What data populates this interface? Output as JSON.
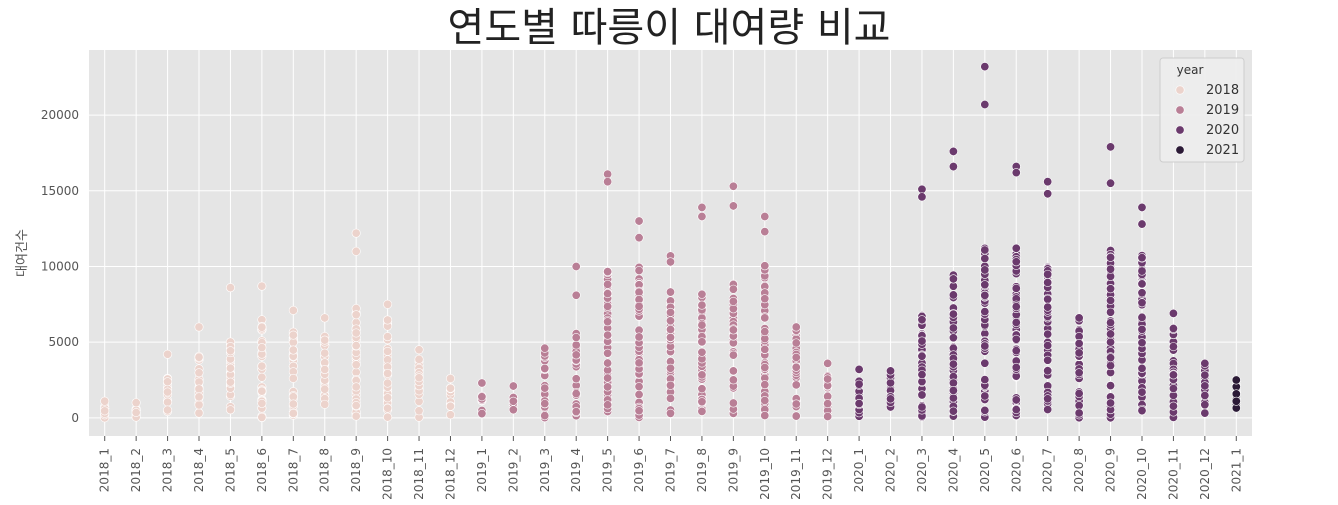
{
  "chart_data": {
    "type": "scatter",
    "title": "연도별 따릉이 대여량 비교",
    "xlabel": "",
    "ylabel": "대여건수",
    "categories": [
      "2018_1",
      "2018_2",
      "2018_3",
      "2018_4",
      "2018_5",
      "2018_6",
      "2018_7",
      "2018_8",
      "2018_9",
      "2018_10",
      "2018_11",
      "2018_12",
      "2019_1",
      "2019_2",
      "2019_3",
      "2019_4",
      "2019_5",
      "2019_6",
      "2019_7",
      "2019_8",
      "2019_9",
      "2019_10",
      "2019_11",
      "2019_12",
      "2020_1",
      "2020_2",
      "2020_3",
      "2020_4",
      "2020_5",
      "2020_6",
      "2020_7",
      "2020_8",
      "2020_9",
      "2020_10",
      "2020_11",
      "2020_12",
      "2021_1"
    ],
    "ylim": [
      -1200,
      24300
    ],
    "yticks": [
      0,
      5000,
      10000,
      15000,
      20000
    ],
    "grid": true,
    "legend": {
      "title": "year",
      "placement": "top-right",
      "entries": [
        "2018",
        "2019",
        "2020",
        "2021"
      ]
    },
    "colors": {
      "2018": "#ecd3cc",
      "2019": "#b97f96",
      "2020": "#6b3a6d",
      "2021": "#2b1a36",
      "background": "#e5e5e5",
      "grid": "#ffffff"
    },
    "series": [
      {
        "name": "2018",
        "points": [
          [
            "2018_1",
            1100
          ],
          [
            "2018_2",
            1000
          ],
          [
            "2018_3",
            4200
          ],
          [
            "2018_4",
            6000
          ],
          [
            "2018_5",
            8600
          ],
          [
            "2018_6",
            8700
          ],
          [
            "2018_7",
            7100
          ],
          [
            "2018_8",
            6600
          ],
          [
            "2018_9",
            12200
          ],
          [
            "2018_9",
            11000
          ],
          [
            "2018_10",
            7500
          ],
          [
            "2018_11",
            4500
          ],
          [
            "2018_12",
            2600
          ]
        ],
        "ranges": [
          {
            "x": "2018_1",
            "min": 0,
            "max": 800
          },
          {
            "x": "2018_2",
            "min": 0,
            "max": 700
          },
          {
            "x": "2018_3",
            "min": 0,
            "max": 2800
          },
          {
            "x": "2018_4",
            "min": 0,
            "max": 4300
          },
          {
            "x": "2018_5",
            "min": 0,
            "max": 5300
          },
          {
            "x": "2018_6",
            "min": 0,
            "max": 6500
          },
          {
            "x": "2018_7",
            "min": 0,
            "max": 5700
          },
          {
            "x": "2018_8",
            "min": 0,
            "max": 5400
          },
          {
            "x": "2018_9",
            "min": 0,
            "max": 7500
          },
          {
            "x": "2018_10",
            "min": 0,
            "max": 6500
          },
          {
            "x": "2018_11",
            "min": 0,
            "max": 4000
          },
          {
            "x": "2018_12",
            "min": 0,
            "max": 2000
          }
        ]
      },
      {
        "name": "2019",
        "points": [
          [
            "2019_1",
            2300
          ],
          [
            "2019_2",
            2100
          ],
          [
            "2019_3",
            4600
          ],
          [
            "2019_4",
            10000
          ],
          [
            "2019_4",
            8100
          ],
          [
            "2019_5",
            16100
          ],
          [
            "2019_5",
            15600
          ],
          [
            "2019_6",
            13000
          ],
          [
            "2019_6",
            11900
          ],
          [
            "2019_7",
            10700
          ],
          [
            "2019_7",
            10300
          ],
          [
            "2019_8",
            13900
          ],
          [
            "2019_8",
            13300
          ],
          [
            "2019_9",
            15300
          ],
          [
            "2019_9",
            14000
          ],
          [
            "2019_10",
            13300
          ],
          [
            "2019_10",
            12300
          ],
          [
            "2019_11",
            6000
          ],
          [
            "2019_12",
            3600
          ]
        ],
        "ranges": [
          {
            "x": "2019_1",
            "min": 100,
            "max": 1500
          },
          {
            "x": "2019_2",
            "min": 100,
            "max": 1500
          },
          {
            "x": "2019_3",
            "min": 0,
            "max": 4500
          },
          {
            "x": "2019_4",
            "min": 0,
            "max": 5800
          },
          {
            "x": "2019_5",
            "min": 0,
            "max": 10000
          },
          {
            "x": "2019_6",
            "min": 0,
            "max": 10000
          },
          {
            "x": "2019_7",
            "min": 0,
            "max": 8800
          },
          {
            "x": "2019_8",
            "min": 0,
            "max": 8200
          },
          {
            "x": "2019_9",
            "min": 0,
            "max": 9000
          },
          {
            "x": "2019_10",
            "min": 0,
            "max": 10200
          },
          {
            "x": "2019_11",
            "min": 0,
            "max": 5800
          },
          {
            "x": "2019_12",
            "min": 0,
            "max": 3000
          }
        ]
      },
      {
        "name": "2020",
        "points": [
          [
            "2020_1",
            3200
          ],
          [
            "2020_2",
            3100
          ],
          [
            "2020_3",
            15100
          ],
          [
            "2020_3",
            14600
          ],
          [
            "2020_4",
            17600
          ],
          [
            "2020_4",
            16600
          ],
          [
            "2020_5",
            23200
          ],
          [
            "2020_5",
            20700
          ],
          [
            "2020_6",
            16600
          ],
          [
            "2020_6",
            16200
          ],
          [
            "2020_7",
            15600
          ],
          [
            "2020_7",
            14800
          ],
          [
            "2020_8",
            6600
          ],
          [
            "2020_9",
            17900
          ],
          [
            "2020_9",
            15500
          ],
          [
            "2020_10",
            13900
          ],
          [
            "2020_10",
            12800
          ],
          [
            "2020_11",
            6900
          ],
          [
            "2020_12",
            3600
          ]
        ],
        "ranges": [
          {
            "x": "2020_1",
            "min": 100,
            "max": 3100
          },
          {
            "x": "2020_2",
            "min": 100,
            "max": 3000
          },
          {
            "x": "2020_3",
            "min": 0,
            "max": 7000
          },
          {
            "x": "2020_4",
            "min": 0,
            "max": 9700
          },
          {
            "x": "2020_5",
            "min": 0,
            "max": 11500
          },
          {
            "x": "2020_6",
            "min": 0,
            "max": 11400
          },
          {
            "x": "2020_7",
            "min": 0,
            "max": 10300
          },
          {
            "x": "2020_8",
            "min": 0,
            "max": 6500
          },
          {
            "x": "2020_9",
            "min": 0,
            "max": 11200
          },
          {
            "x": "2020_10",
            "min": 0,
            "max": 10800
          },
          {
            "x": "2020_11",
            "min": 0,
            "max": 6000
          },
          {
            "x": "2020_12",
            "min": 0,
            "max": 3500
          }
        ]
      },
      {
        "name": "2021",
        "points": [
          [
            "2021_1",
            2500
          ]
        ],
        "ranges": [
          {
            "x": "2021_1",
            "min": 100,
            "max": 2500
          }
        ]
      }
    ]
  }
}
